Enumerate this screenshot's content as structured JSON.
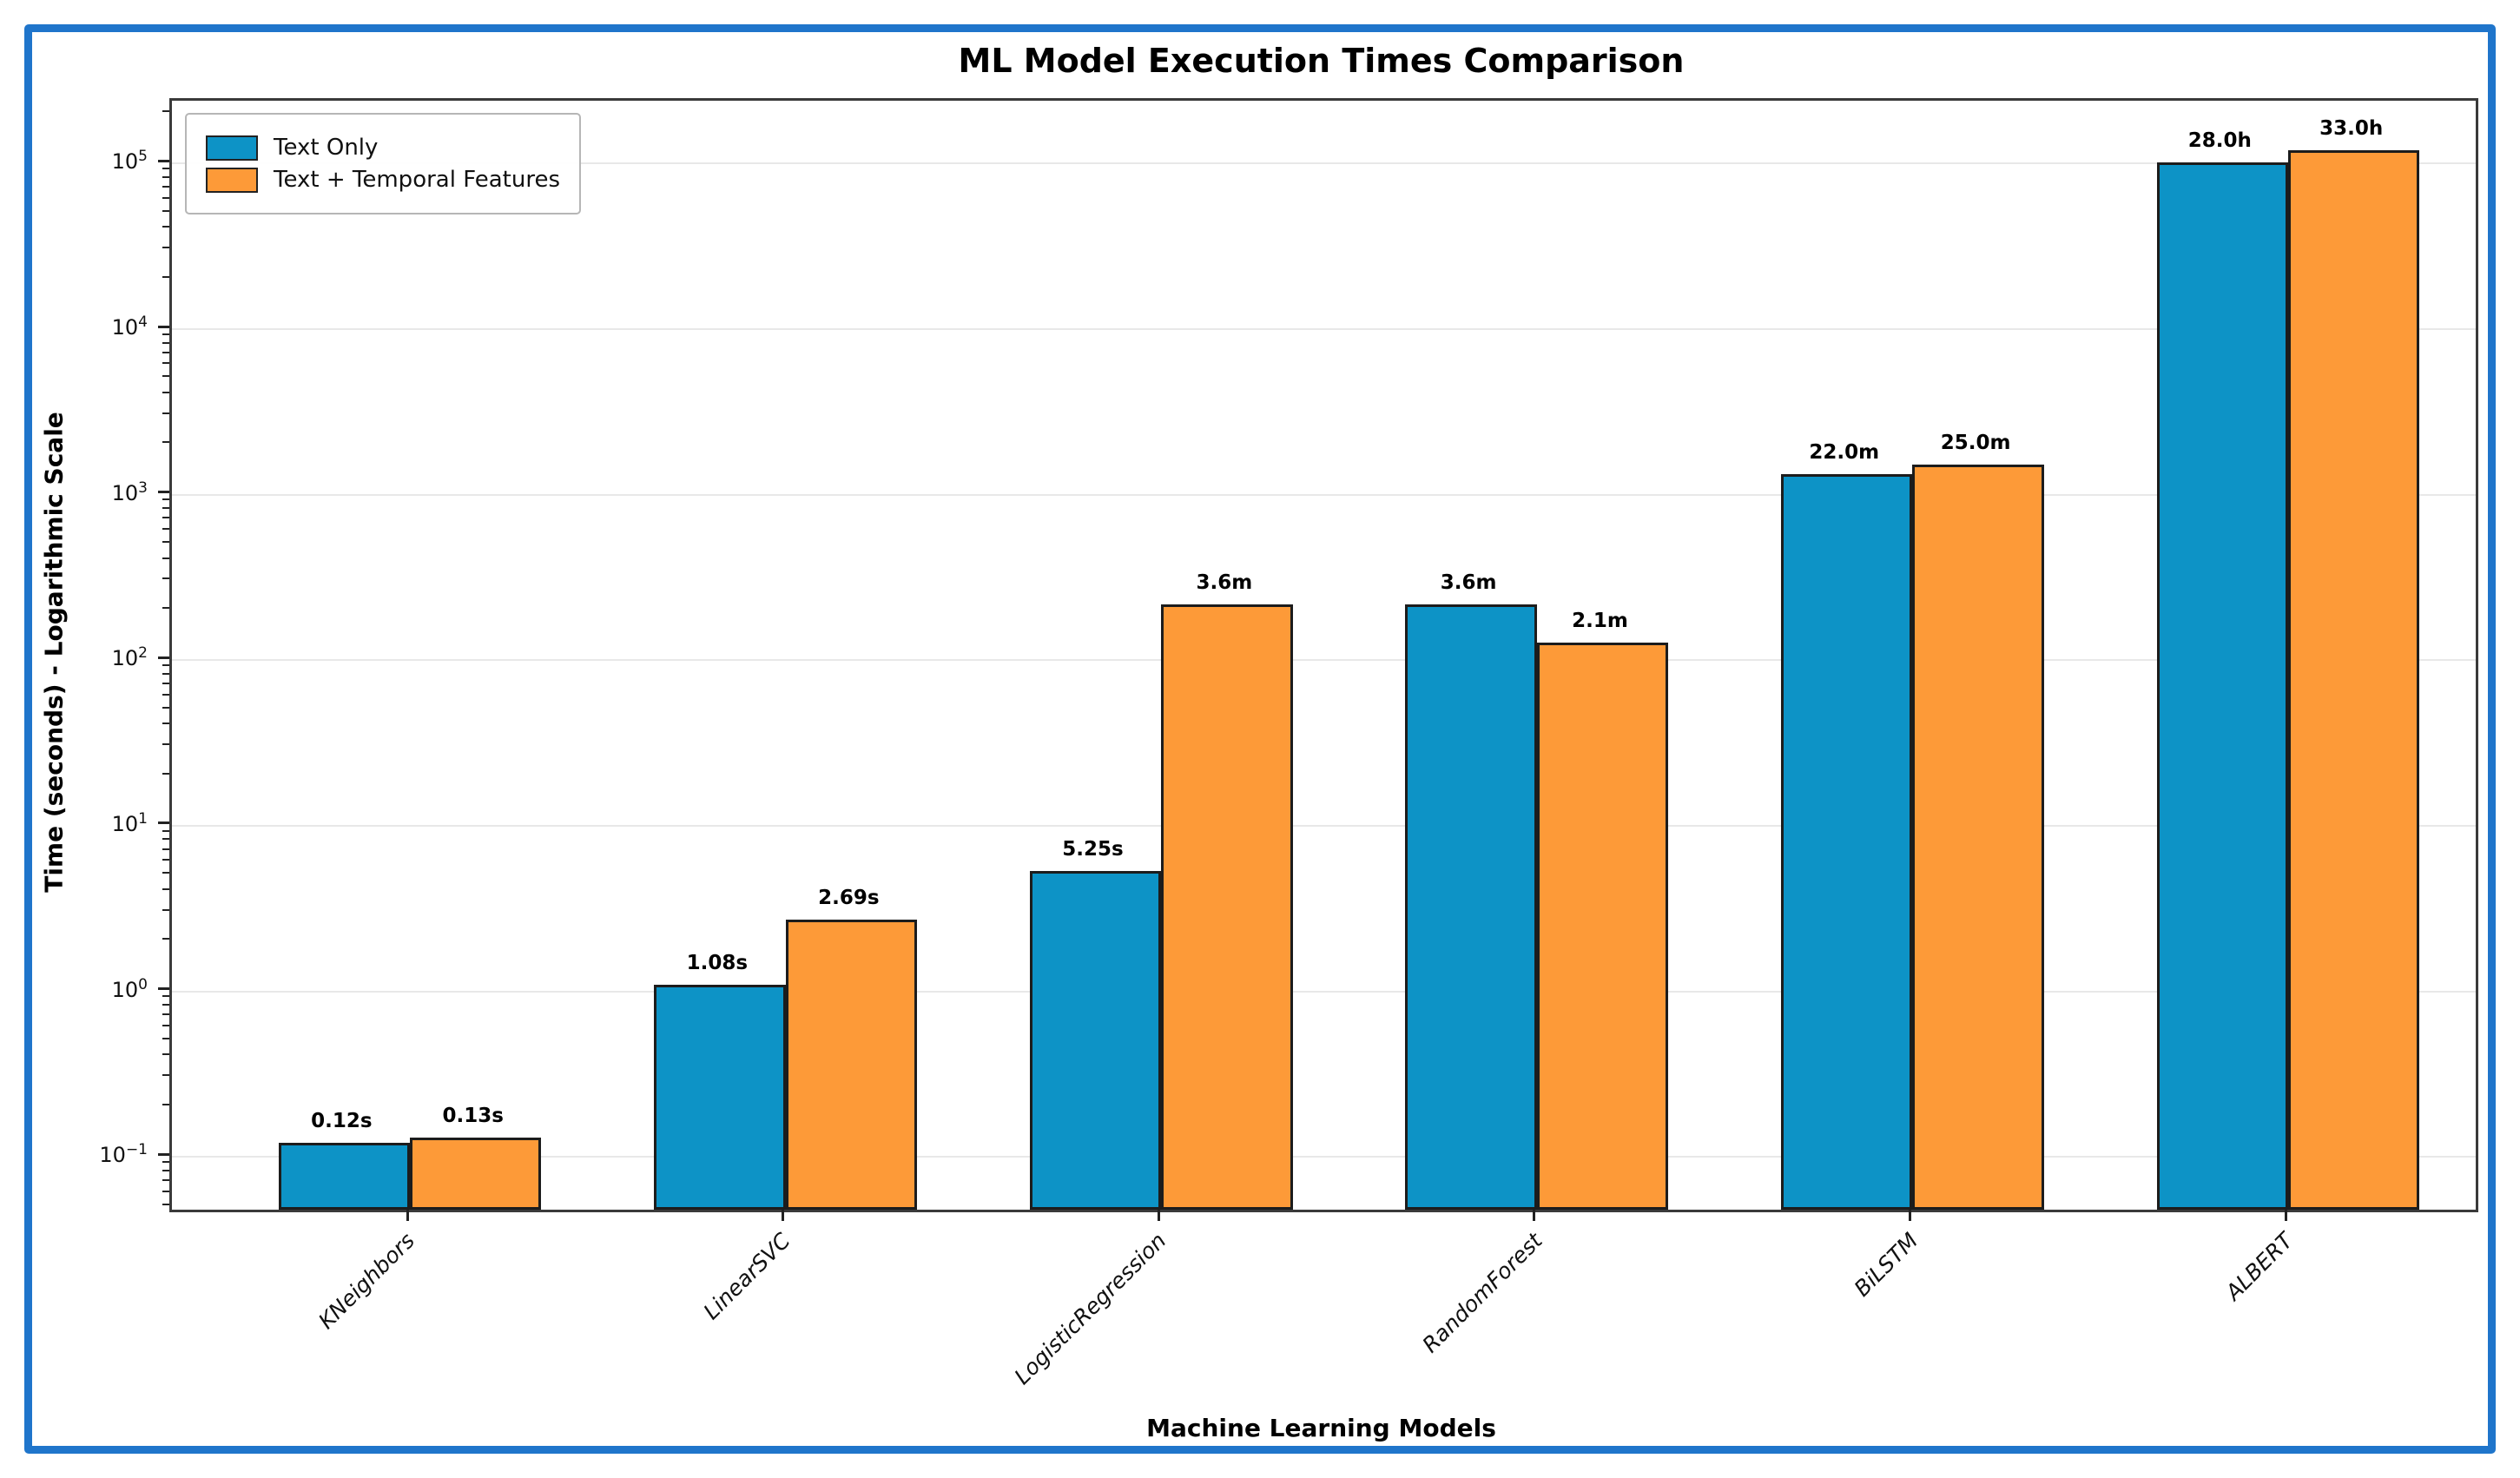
{
  "colors": {
    "frame_border": "#1f75cb",
    "series_text_only": "#0d93c6",
    "series_temporal": "#fd9a38",
    "bar_edge": "#1c1c1c",
    "gridline": "#e8e8e8",
    "axis_spine": "#3a3a3a"
  },
  "chart_data": {
    "type": "bar",
    "title": "ML Model Execution Times Comparison",
    "xlabel": "Machine Learning Models",
    "ylabel": "Time (seconds) - Logarithmic Scale",
    "log_scale_y": true,
    "grid": "horizontal-major-only",
    "legend_position": "upper-left-inside",
    "ylim": [
      0.048,
      240000
    ],
    "y_tick_exponents": [
      -1,
      0,
      1,
      2,
      3,
      4,
      5
    ],
    "categories": [
      "KNeighbors",
      "LinearSVC",
      "LogisticRegression",
      "RandomForest",
      "BiLSTM",
      "ALBERT"
    ],
    "series": [
      {
        "name": "Text Only",
        "color": "#0d93c6",
        "values_seconds": [
          0.12,
          1.08,
          5.25,
          216,
          1320,
          100800
        ],
        "labels": [
          "0.12s",
          "1.08s",
          "5.25s",
          "3.6m",
          "22.0m",
          "28.0h"
        ]
      },
      {
        "name": "Text + Temporal Features",
        "color": "#fd9a38",
        "values_seconds": [
          0.13,
          2.69,
          216,
          126,
          1500,
          118800
        ],
        "labels": [
          "0.13s",
          "2.69s",
          "3.6m",
          "2.1m",
          "25.0m",
          "33.0h"
        ]
      }
    ]
  }
}
